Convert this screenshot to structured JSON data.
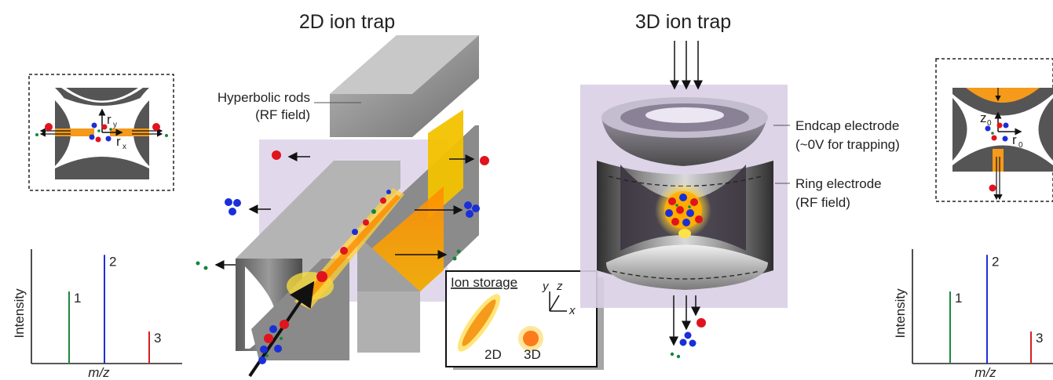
{
  "titles": {
    "trap_2d": "2D ion trap",
    "trap_3d": "3D ion trap"
  },
  "labels_2d": {
    "rods_line1": "Hyperbolic rods",
    "rods_line2": "(RF field)"
  },
  "labels_3d": {
    "endcap_line1": "Endcap electrode",
    "endcap_line2": "(~0V for trapping)",
    "ring_line1": "Ring electrode",
    "ring_line2": "(RF field)"
  },
  "inset_2d": {
    "ry": "r",
    "ry_sub": "y",
    "rx": "r",
    "rx_sub": "x"
  },
  "inset_3d": {
    "z0": "z",
    "z0_sub": "0",
    "r0": "r",
    "r0_sub": "0"
  },
  "ion_storage": {
    "title": "Ion storage",
    "axis_y": "y",
    "axis_z": "z",
    "axis_x": "x",
    "label_2d": "2D",
    "label_3d": "3D"
  },
  "spectrum_left": {
    "ylabel": "Intensity",
    "xlabel": "m/z",
    "peaks": [
      {
        "label": "1",
        "color": "#1a8a3a",
        "value": 0.63
      },
      {
        "label": "2",
        "color": "#1f2fd6",
        "value": 0.95
      },
      {
        "label": "3",
        "color": "#d62020",
        "value": 0.28
      }
    ]
  },
  "spectrum_right": {
    "ylabel": "Intensity",
    "xlabel": "m/z",
    "peaks": [
      {
        "label": "1",
        "color": "#1a8a3a",
        "value": 0.63
      },
      {
        "label": "2",
        "color": "#1f2fd6",
        "value": 0.95
      },
      {
        "label": "3",
        "color": "#d62020",
        "value": 0.28
      }
    ]
  },
  "colors": {
    "ion_red": "#e0141e",
    "ion_blue": "#1a2fd8",
    "ion_green": "#14863a",
    "field_purple": "#d9cfe6",
    "beam_orange": "#f59a1b"
  }
}
